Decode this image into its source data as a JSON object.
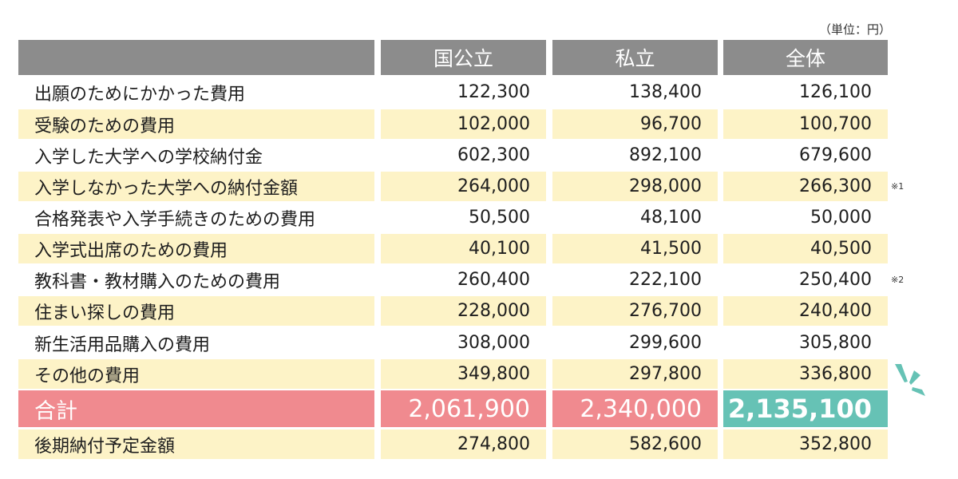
{
  "unit": "（単位：円）",
  "headers": [
    "国公立",
    "私立",
    "全体"
  ],
  "rows": [
    {
      "label": "出願のためにかかった費用",
      "values": [
        "122,300",
        "138,400",
        "126,100"
      ],
      "note": ""
    },
    {
      "label": "受験のための費用",
      "values": [
        "102,000",
        "96,700",
        "100,700"
      ],
      "note": ""
    },
    {
      "label": "入学した大学への学校納付金",
      "values": [
        "602,300",
        "892,100",
        "679,600"
      ],
      "note": ""
    },
    {
      "label": "入学しなかった大学への納付金額",
      "values": [
        "264,000",
        "298,000",
        "266,300"
      ],
      "note": "※1"
    },
    {
      "label": "合格発表や入学手続きのための費用",
      "values": [
        "50,500",
        "48,100",
        "50,000"
      ],
      "note": ""
    },
    {
      "label": "入学式出席のための費用",
      "values": [
        "40,100",
        "41,500",
        "40,500"
      ],
      "note": ""
    },
    {
      "label": "教科書・教材購入のための費用",
      "values": [
        "260,400",
        "222,100",
        "250,400"
      ],
      "note": "※2"
    },
    {
      "label": "住まい探しの費用",
      "values": [
        "228,000",
        "276,700",
        "240,400"
      ],
      "note": ""
    },
    {
      "label": "新生活用品購入の費用",
      "values": [
        "308,000",
        "299,600",
        "305,800"
      ],
      "note": ""
    },
    {
      "label": "その他の費用",
      "values": [
        "349,800",
        "297,800",
        "336,800"
      ],
      "note": ""
    }
  ],
  "total": {
    "label": "合計",
    "values": [
      "2,061,900",
      "2,340,000",
      "2,135,100"
    ]
  },
  "last": {
    "label": "後期納付予定金額",
    "values": [
      "274,800",
      "582,600",
      "352,800"
    ]
  },
  "colors": {
    "header_gray": "#8c8c8c",
    "row_band": "#fdf3c7",
    "total_pink": "#f08a8f",
    "total_teal": "#66c2b5",
    "spark_teal": "#66c2b5"
  }
}
